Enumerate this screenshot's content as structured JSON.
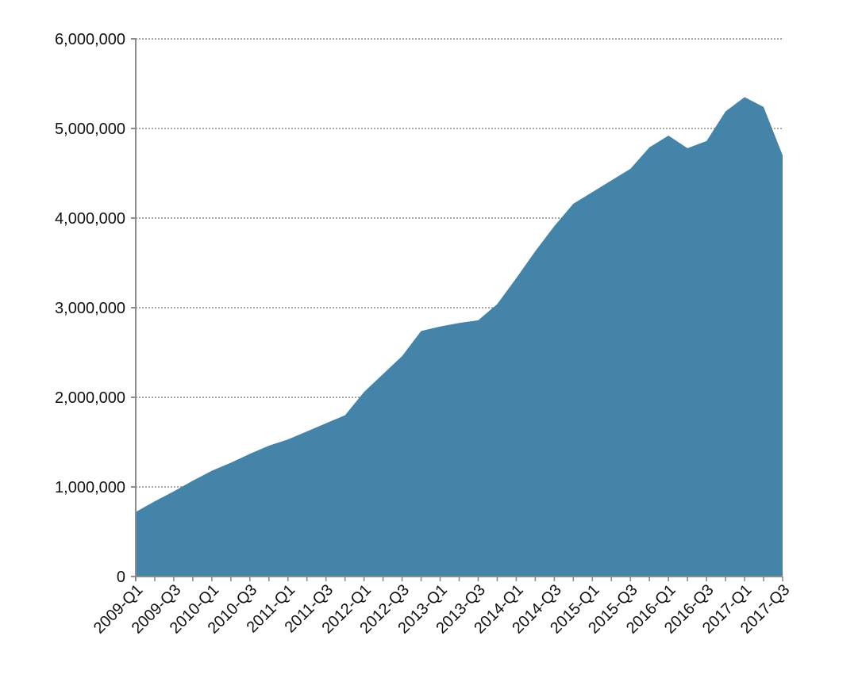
{
  "chart_data": {
    "type": "area",
    "title": "",
    "xlabel": "",
    "ylabel": "",
    "ylim": [
      0,
      6000000
    ],
    "yticks": [
      0,
      1000000,
      2000000,
      3000000,
      4000000,
      5000000,
      6000000
    ],
    "ytick_labels": [
      "0",
      "1,000,000",
      "2,000,000",
      "3,000,000",
      "4,000,000",
      "5,000,000",
      "6,000,000"
    ],
    "grid": "horizontal-dotted",
    "legend": "none",
    "x_tick_labels": [
      "2009-Q1",
      "2009-Q3",
      "2010-Q1",
      "2010-Q3",
      "2011-Q1",
      "2011-Q3",
      "2012-Q1",
      "2012-Q3",
      "2013-Q1",
      "2013-Q3",
      "2014-Q1",
      "2014-Q3",
      "2015-Q1",
      "2015-Q3",
      "2016-Q1",
      "2016-Q3",
      "2017-Q1",
      "2017-Q3"
    ],
    "categories": [
      "2009-Q1",
      "2009-Q2",
      "2009-Q3",
      "2009-Q4",
      "2010-Q1",
      "2010-Q2",
      "2010-Q3",
      "2010-Q4",
      "2011-Q1",
      "2011-Q2",
      "2011-Q3",
      "2011-Q4",
      "2012-Q1",
      "2012-Q2",
      "2012-Q3",
      "2012-Q4",
      "2013-Q1",
      "2013-Q2",
      "2013-Q3",
      "2013-Q4",
      "2014-Q1",
      "2014-Q2",
      "2014-Q3",
      "2014-Q4",
      "2015-Q1",
      "2015-Q2",
      "2015-Q3",
      "2015-Q4",
      "2016-Q1",
      "2016-Q2",
      "2016-Q3",
      "2016-Q4",
      "2017-Q1",
      "2017-Q2",
      "2017-Q3"
    ],
    "series": [
      {
        "color": "#4384a8",
        "values": [
          720000,
          840000,
          950000,
          1070000,
          1180000,
          1270000,
          1370000,
          1460000,
          1530000,
          1620000,
          1710000,
          1800000,
          2060000,
          2260000,
          2460000,
          2740000,
          2790000,
          2830000,
          2860000,
          3040000,
          3330000,
          3630000,
          3910000,
          4160000,
          4290000,
          4420000,
          4550000,
          4790000,
          4920000,
          4780000,
          4860000,
          5190000,
          5350000,
          5240000,
          4700000
        ]
      }
    ]
  }
}
